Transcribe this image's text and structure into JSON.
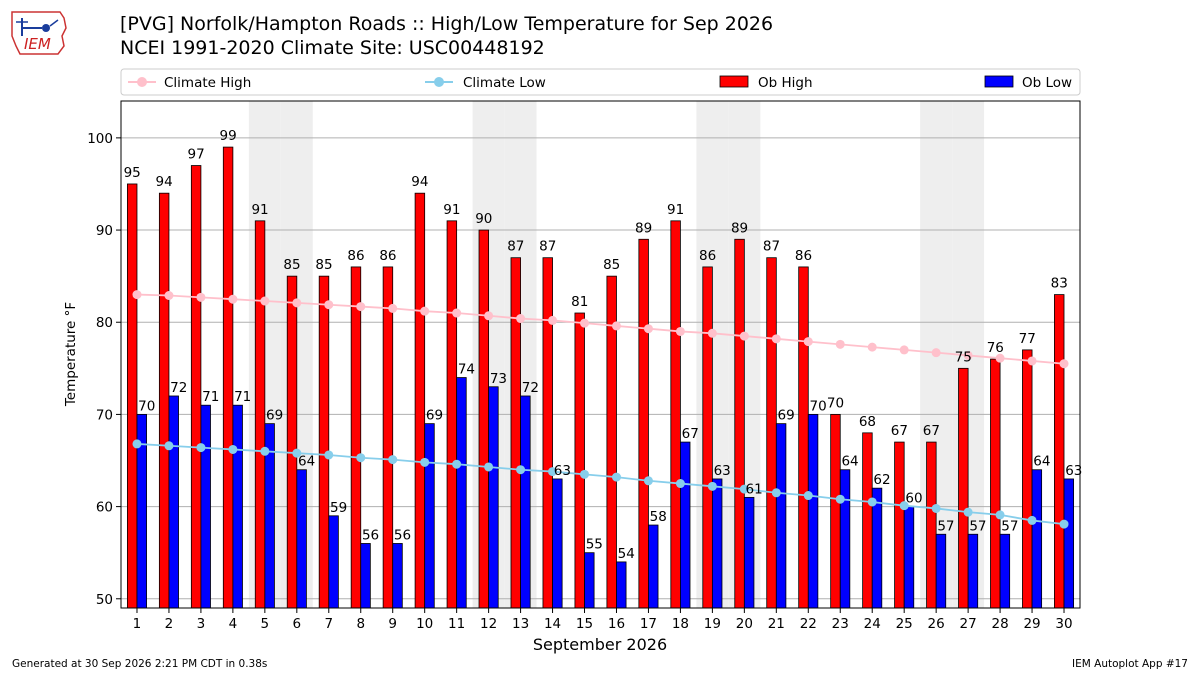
{
  "header": {
    "title_line1": "[PVG] Norfolk/Hampton Roads :: High/Low Temperature for Sep 2026",
    "title_line2": "NCEI 1991-2020 Climate Site: USC00448192",
    "logo_text": "IEM"
  },
  "footer": {
    "generated": "Generated at 30 Sep 2026 2:21 PM CDT in 0.38s",
    "app": "IEM Autoplot App #17"
  },
  "colors": {
    "ob_high": "#ff0000",
    "ob_low": "#0000ff",
    "climate_high": "#ffc0cb",
    "climate_low": "#87ceeb",
    "weekend_shade": "#eeeeee"
  },
  "chart_data": {
    "type": "bar",
    "xlabel": "September 2026",
    "ylabel": "Temperature °F",
    "ylim": [
      49,
      104
    ],
    "yticks": [
      50,
      60,
      70,
      80,
      90,
      100
    ],
    "grid": "horizontal",
    "legend_position": "top",
    "categories": [
      "1",
      "2",
      "3",
      "4",
      "5",
      "6",
      "7",
      "8",
      "9",
      "10",
      "11",
      "12",
      "13",
      "14",
      "15",
      "16",
      "17",
      "18",
      "19",
      "20",
      "21",
      "22",
      "23",
      "24",
      "25",
      "26",
      "27",
      "28",
      "29",
      "30"
    ],
    "shaded_days": [
      5,
      6,
      12,
      13,
      19,
      20,
      26,
      27
    ],
    "series": [
      {
        "name": "Ob High",
        "kind": "bar",
        "values": [
          95,
          94,
          97,
          99,
          91,
          85,
          85,
          86,
          86,
          94,
          91,
          90,
          87,
          87,
          81,
          85,
          89,
          91,
          86,
          89,
          87,
          86,
          70,
          68,
          67,
          67,
          75,
          76,
          77,
          83
        ]
      },
      {
        "name": "Ob Low",
        "kind": "bar",
        "values": [
          70,
          72,
          71,
          71,
          69,
          64,
          59,
          56,
          56,
          69,
          74,
          73,
          72,
          63,
          55,
          54,
          58,
          67,
          63,
          61,
          69,
          70,
          64,
          62,
          60,
          57,
          57,
          57,
          64,
          63
        ]
      },
      {
        "name": "Climate High",
        "kind": "line",
        "values": [
          83,
          82.9,
          82.7,
          82.5,
          82.3,
          82.1,
          81.9,
          81.7,
          81.5,
          81.2,
          81,
          80.7,
          80.4,
          80.2,
          79.9,
          79.6,
          79.3,
          79,
          78.8,
          78.5,
          78.2,
          77.9,
          77.6,
          77.3,
          77,
          76.7,
          76.4,
          76.1,
          75.8,
          75.5
        ]
      },
      {
        "name": "Climate Low",
        "kind": "line",
        "values": [
          66.8,
          66.6,
          66.4,
          66.2,
          66,
          65.8,
          65.6,
          65.3,
          65.1,
          64.8,
          64.6,
          64.3,
          64,
          63.8,
          63.5,
          63.2,
          62.8,
          62.5,
          62.2,
          61.9,
          61.5,
          61.2,
          60.8,
          60.5,
          60.1,
          59.8,
          59.4,
          59.1,
          58.5,
          58.1
        ]
      }
    ]
  }
}
